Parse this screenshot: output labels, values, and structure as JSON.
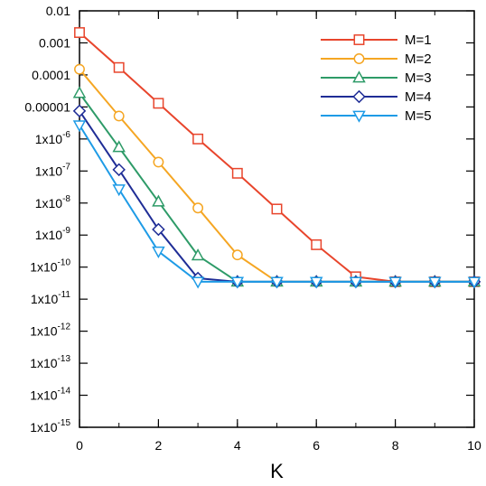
{
  "chart_data": {
    "type": "line",
    "title": "",
    "xlabel": "K",
    "ylabel": "",
    "yscale": "log",
    "xlim": [
      0,
      10
    ],
    "ylim": [
      1e-15,
      0.01
    ],
    "x_ticks": [
      0,
      2,
      4,
      6,
      8,
      10
    ],
    "y_ticks": [
      {
        "value": 0.01,
        "label": "0.01"
      },
      {
        "value": 0.001,
        "label": "0.001"
      },
      {
        "value": 0.0001,
        "label": "0.0001"
      },
      {
        "value": 1e-05,
        "label": "0.00001"
      },
      {
        "value": 1e-06,
        "mant": "1x10",
        "exp": "-6"
      },
      {
        "value": 1e-07,
        "mant": "1x10",
        "exp": "-7"
      },
      {
        "value": 1e-08,
        "mant": "1x10",
        "exp": "-8"
      },
      {
        "value": 1e-09,
        "mant": "1x10",
        "exp": "-9"
      },
      {
        "value": 1e-10,
        "mant": "1x10",
        "exp": "-10"
      },
      {
        "value": 1e-11,
        "mant": "1x10",
        "exp": "-11"
      },
      {
        "value": 1e-12,
        "mant": "1x10",
        "exp": "-12"
      },
      {
        "value": 1e-13,
        "mant": "1x10",
        "exp": "-13"
      },
      {
        "value": 1e-14,
        "mant": "1x10",
        "exp": "-14"
      },
      {
        "value": 1e-15,
        "mant": "1x10",
        "exp": "-15"
      }
    ],
    "grid": false,
    "legend_position": "top-right",
    "x": [
      0,
      1,
      2,
      3,
      4,
      5,
      6,
      7,
      8,
      9,
      10
    ],
    "series": [
      {
        "name": "M=1",
        "color": "#e8452c",
        "marker": "square",
        "values": [
          0.0021,
          0.00017,
          1.3e-05,
          1e-06,
          8.5e-08,
          6.5e-09,
          5e-10,
          5e-11,
          3.5e-11,
          3.5e-11,
          3.5e-11
        ]
      },
      {
        "name": "M=2",
        "color": "#f5a623",
        "marker": "circle",
        "values": [
          0.00015,
          5.2e-06,
          1.9e-07,
          7e-09,
          2.4e-10,
          3.5e-11,
          3.5e-11,
          3.5e-11,
          3.5e-11,
          3.5e-11,
          3.5e-11
        ]
      },
      {
        "name": "M=3",
        "color": "#2e9b68",
        "marker": "triangle-up",
        "values": [
          2.7e-05,
          5.5e-07,
          1.1e-08,
          2.3e-10,
          3.5e-11,
          3.5e-11,
          3.5e-11,
          3.5e-11,
          3.5e-11,
          3.5e-11,
          3.5e-11
        ]
      },
      {
        "name": "M=4",
        "color": "#1f2d96",
        "marker": "diamond",
        "values": [
          7.5e-06,
          1.1e-07,
          1.5e-09,
          4.5e-11,
          3.5e-11,
          3.5e-11,
          3.5e-11,
          3.5e-11,
          3.5e-11,
          3.5e-11,
          3.5e-11
        ]
      },
      {
        "name": "M=5",
        "color": "#1e9be6",
        "marker": "triangle-down",
        "values": [
          2.7e-06,
          2.7e-08,
          3.1e-10,
          3.5e-11,
          3.5e-11,
          3.5e-11,
          3.5e-11,
          3.5e-11,
          3.5e-11,
          3.5e-11,
          3.5e-11
        ]
      }
    ]
  }
}
